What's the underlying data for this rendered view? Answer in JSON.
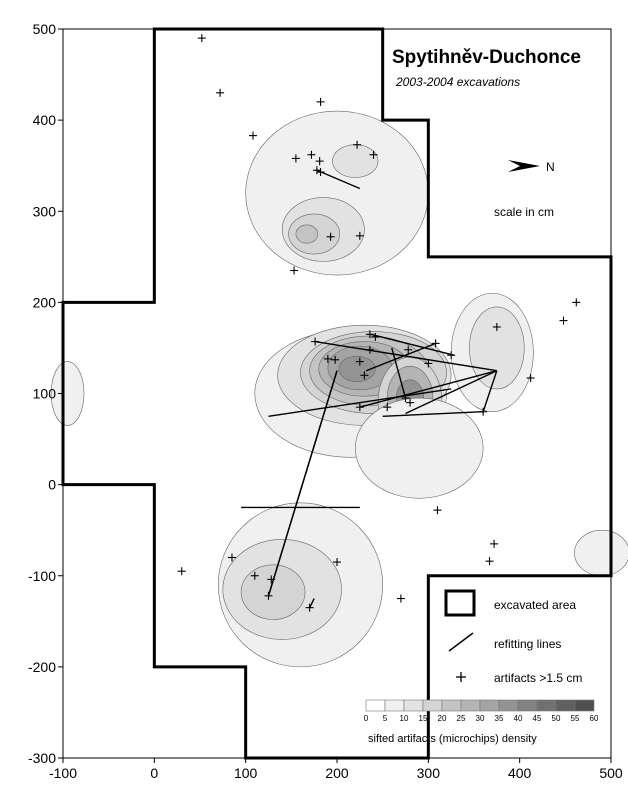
{
  "chart_data": {
    "type": "scatter",
    "title": "Spytihněv-Duchonce",
    "subtitle": "2003-2004 excavations",
    "north_label": "N",
    "scale_note": "scale in cm",
    "xlim": [
      -100,
      500
    ],
    "ylim": [
      -300,
      500
    ],
    "x_ticks": [
      -100,
      0,
      100,
      200,
      300,
      400,
      500
    ],
    "y_ticks": [
      -300,
      -200,
      -100,
      0,
      100,
      200,
      300,
      400,
      500
    ],
    "grid": false,
    "excavated_area": [
      [
        0,
        500
      ],
      [
        250,
        500
      ],
      [
        250,
        400
      ],
      [
        300,
        400
      ],
      [
        300,
        250
      ],
      [
        500,
        250
      ],
      [
        500,
        -100
      ],
      [
        300,
        -100
      ],
      [
        300,
        -300
      ],
      [
        100,
        -300
      ],
      [
        100,
        -200
      ],
      [
        0,
        -200
      ],
      [
        0,
        0
      ],
      [
        -100,
        0
      ],
      [
        -100,
        200
      ],
      [
        0,
        200
      ]
    ],
    "artifacts": [
      [
        52,
        490
      ],
      [
        72,
        430
      ],
      [
        108,
        383
      ],
      [
        182,
        420
      ],
      [
        222,
        373
      ],
      [
        240,
        362
      ],
      [
        155,
        358
      ],
      [
        172,
        362
      ],
      [
        181,
        355
      ],
      [
        178,
        345
      ],
      [
        182,
        343
      ],
      [
        225,
        273
      ],
      [
        193,
        272
      ],
      [
        153,
        235
      ],
      [
        176,
        157
      ],
      [
        190,
        138
      ],
      [
        198,
        137
      ],
      [
        236,
        165
      ],
      [
        242,
        162
      ],
      [
        236,
        148
      ],
      [
        225,
        135
      ],
      [
        230,
        120
      ],
      [
        278,
        148
      ],
      [
        308,
        155
      ],
      [
        325,
        142
      ],
      [
        300,
        133
      ],
      [
        275,
        95
      ],
      [
        280,
        90
      ],
      [
        225,
        85
      ],
      [
        255,
        85
      ],
      [
        360,
        80
      ],
      [
        448,
        180
      ],
      [
        462,
        200
      ],
      [
        412,
        117
      ],
      [
        375,
        173
      ],
      [
        310,
        -28
      ],
      [
        372,
        -65
      ],
      [
        367,
        -84
      ],
      [
        30,
        -95
      ],
      [
        85,
        -80
      ],
      [
        110,
        -100
      ],
      [
        128,
        -104
      ],
      [
        125,
        -122
      ],
      [
        200,
        -85
      ],
      [
        170,
        -135
      ],
      [
        270,
        -125
      ]
    ],
    "refitting_lines": [
      [
        [
          178,
          345
        ],
        [
          225,
          325
        ]
      ],
      [
        [
          176,
          157
        ],
        [
          375,
          125
        ]
      ],
      [
        [
          237,
          165
        ],
        [
          328,
          142
        ]
      ],
      [
        [
          232,
          125
        ],
        [
          308,
          155
        ]
      ],
      [
        [
          225,
          85
        ],
        [
          375,
          125
        ]
      ],
      [
        [
          125,
          -122
        ],
        [
          200,
          125
        ]
      ],
      [
        [
          125,
          -122
        ],
        [
          200,
          125
        ]
      ],
      [
        [
          125,
          75
        ],
        [
          325,
          105
        ]
      ],
      [
        [
          275,
          95
        ],
        [
          260,
          150
        ]
      ],
      [
        [
          275,
          78
        ],
        [
          375,
          125
        ]
      ],
      [
        [
          360,
          80
        ],
        [
          375,
          125
        ]
      ],
      [
        [
          250,
          75
        ],
        [
          360,
          80
        ]
      ],
      [
        [
          95,
          -25
        ],
        [
          225,
          -25
        ]
      ],
      [
        [
          170,
          -135
        ],
        [
          175,
          -125
        ]
      ]
    ],
    "density": {
      "legend_levels": [
        "0",
        "5",
        "10",
        "15",
        "20",
        "25",
        "30",
        "35",
        "40",
        "45",
        "50",
        "55",
        "60"
      ],
      "level_colors": [
        "#ffffff",
        "#f0f0f0",
        "#e2e2e2",
        "#d4d4d4",
        "#c4c4c4",
        "#b4b4b4",
        "#a4a4a4",
        "#939393",
        "#828282",
        "#717171",
        "#606060",
        "#4f4f4f"
      ],
      "title": "sifted artifacts (microchips) density"
    },
    "legend": [
      {
        "symbol": "box",
        "label": "excavated area"
      },
      {
        "symbol": "line",
        "label": "refitting lines"
      },
      {
        "symbol": "plus",
        "label": "artifacts >1.5 cm"
      }
    ]
  }
}
